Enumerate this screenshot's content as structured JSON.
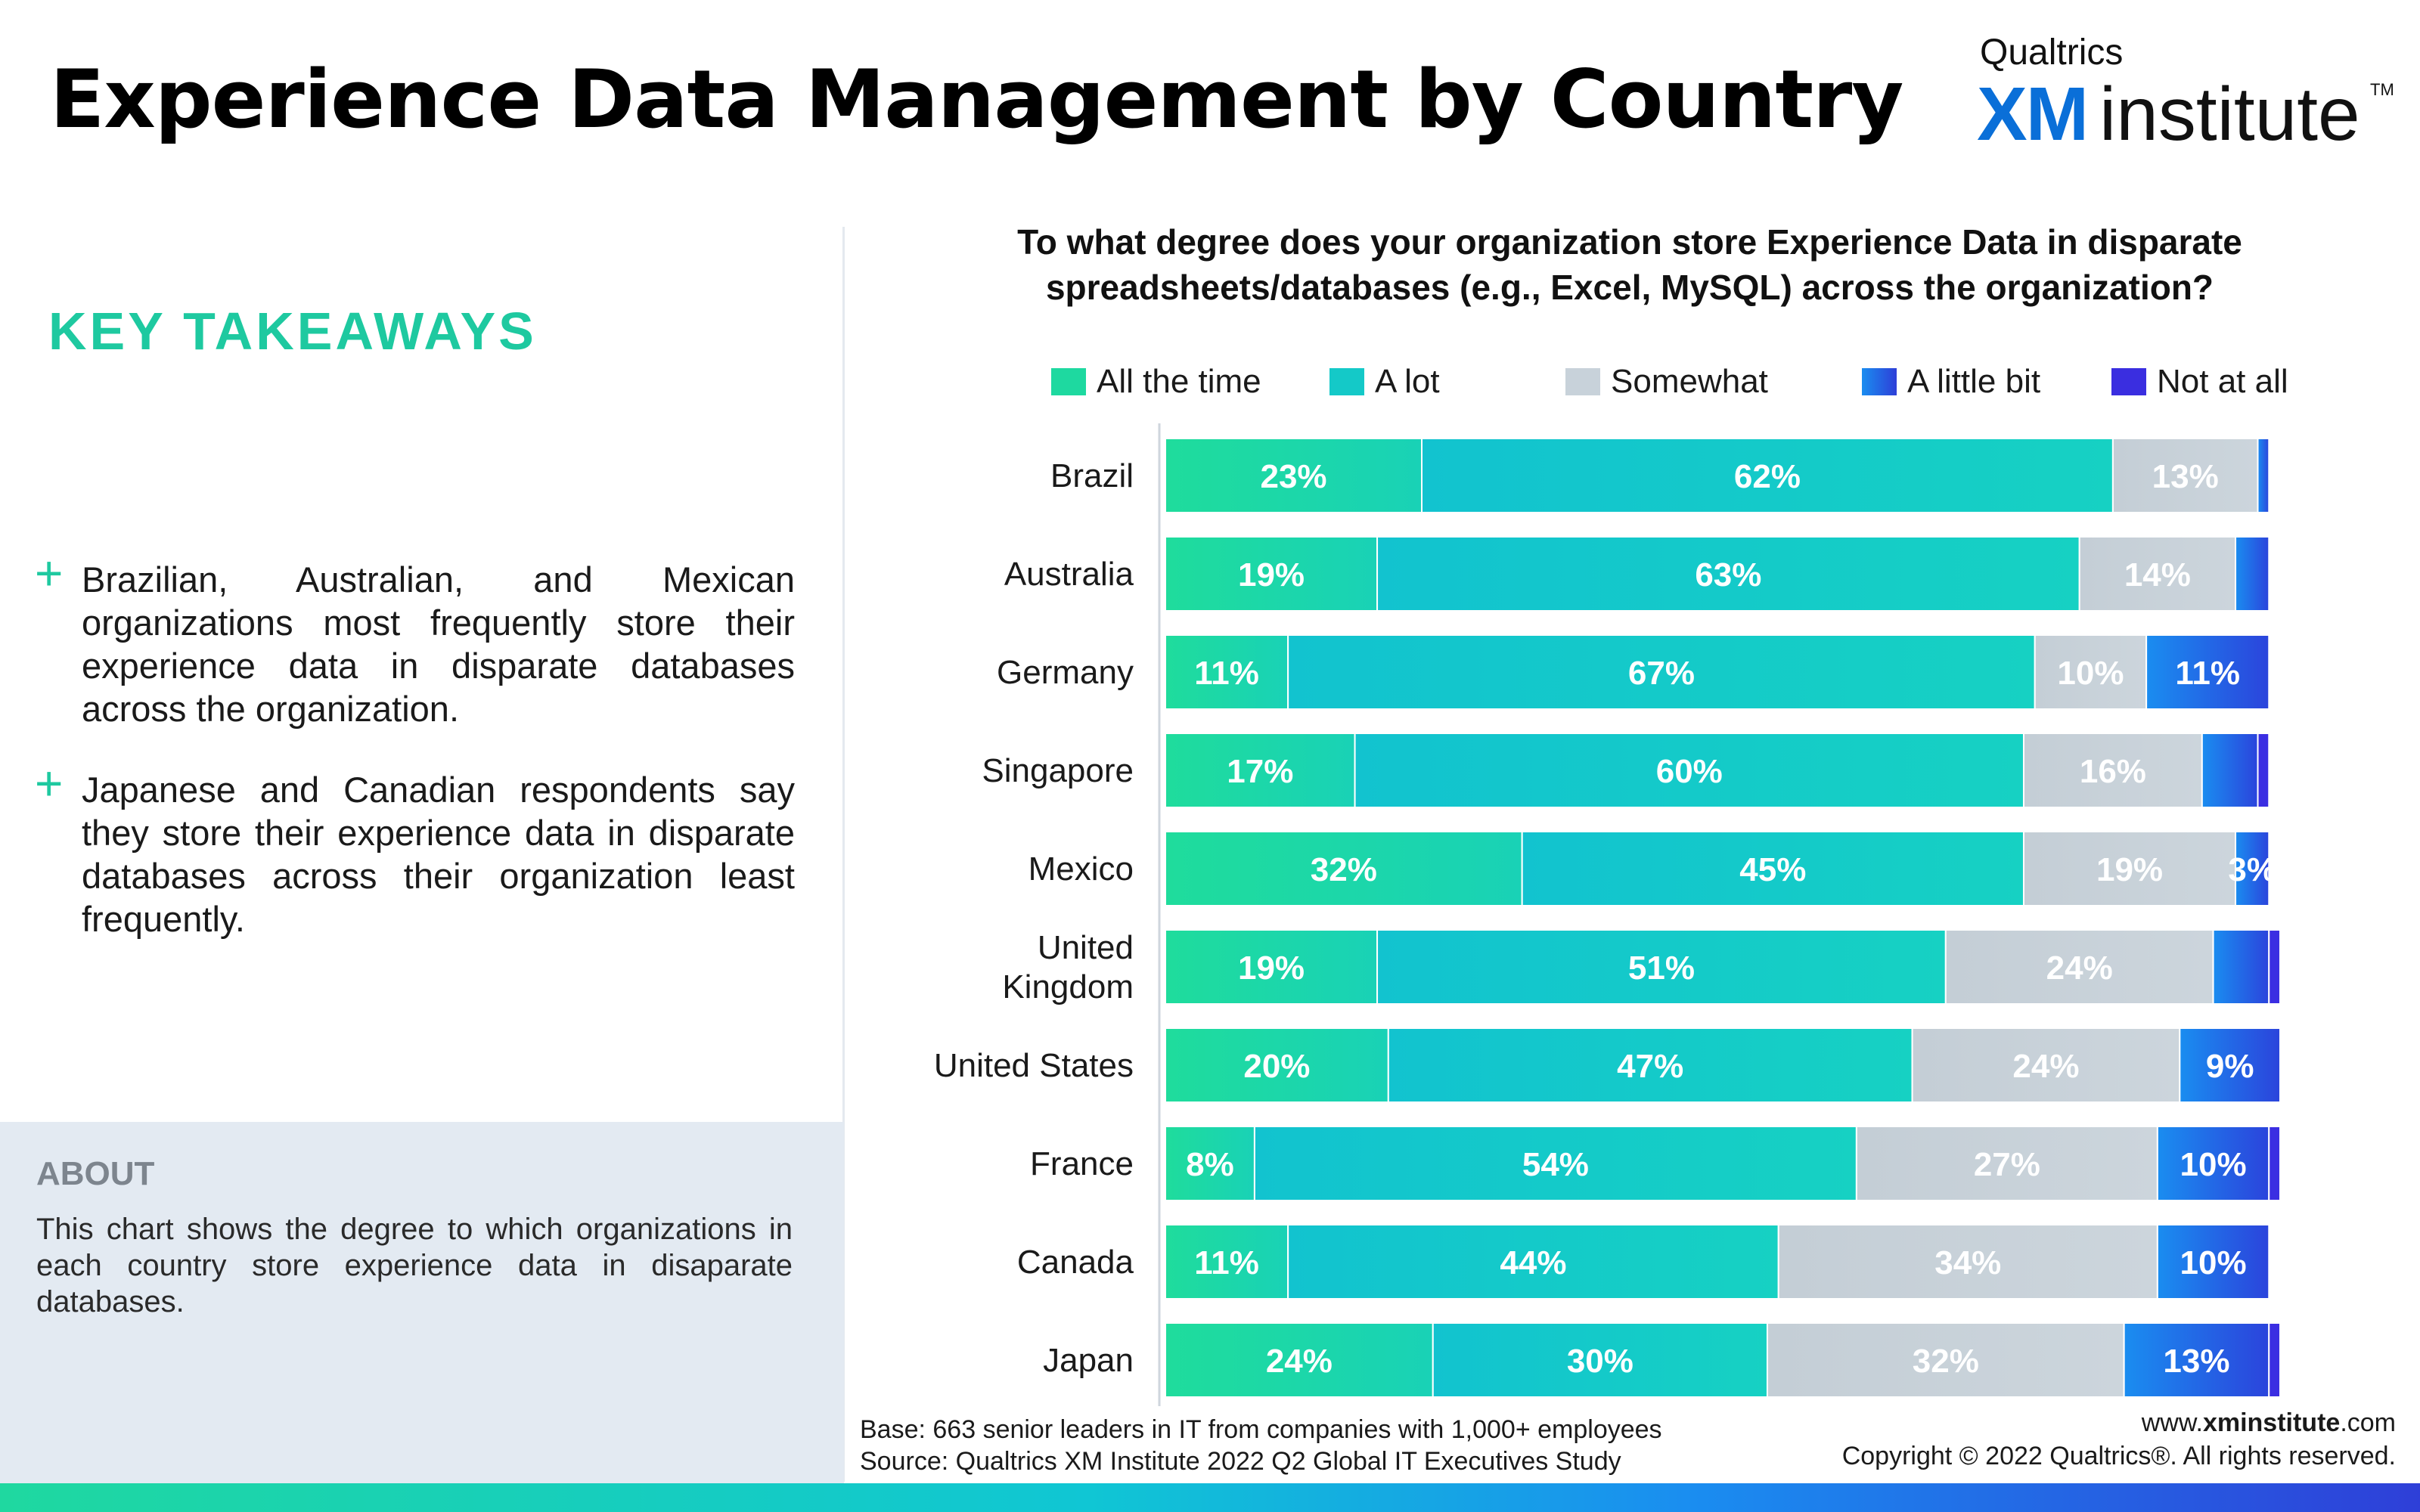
{
  "header": {
    "title": "Experience Data Management by Country",
    "brand_small": "Qualtrics",
    "brand_xm": "XM",
    "brand_institute": "institute",
    "brand_tm": "TM"
  },
  "takeaways": {
    "title": "KEY TAKEAWAYS",
    "bullet_symbol": "+",
    "items": [
      "Brazilian, Australian, and Mexican organizations most frequently store their experience data in disparate databases across the organization.",
      "Japanese and Canadian respondents say they store their experience data in disparate databases across their organization least frequently."
    ]
  },
  "about": {
    "title": "ABOUT",
    "text": "This chart shows the degree to which organizations in each country store experience data in disaparate databases."
  },
  "chart_data": {
    "type": "bar",
    "orientation": "horizontal",
    "stacked": true,
    "title": "To what degree does your organization store Experience Data in disparate spreadsheets/databases (e.g., Excel, MySQL) across the organization?",
    "categories": [
      "Brazil",
      "Australia",
      "Germany",
      "Singapore",
      "Mexico",
      "United Kingdom",
      "United States",
      "France",
      "Canada",
      "Japan"
    ],
    "category_lines": [
      [
        "Brazil"
      ],
      [
        "Australia"
      ],
      [
        "Germany"
      ],
      [
        "Singapore"
      ],
      [
        "Mexico"
      ],
      [
        "United",
        "Kingdom"
      ],
      [
        "United States"
      ],
      [
        "France"
      ],
      [
        "Canada"
      ],
      [
        "Japan"
      ]
    ],
    "unit": "%",
    "xlim": [
      0,
      100
    ],
    "grid": false,
    "legend_position": "top",
    "series": [
      {
        "name": "All the time",
        "color": "#1ed9a0",
        "values": [
          23,
          19,
          11,
          17,
          32,
          19,
          20,
          8,
          11,
          24
        ],
        "labels": [
          "23%",
          "19%",
          "11%",
          "17%",
          "32%",
          "19%",
          "20%",
          "8%",
          "11%",
          "24%"
        ]
      },
      {
        "name": "A lot",
        "color": "#14c9c8",
        "values": [
          62,
          63,
          67,
          60,
          45,
          51,
          47,
          54,
          44,
          30
        ],
        "labels": [
          "62%",
          "63%",
          "67%",
          "60%",
          "45%",
          "51%",
          "47%",
          "54%",
          "44%",
          "30%"
        ]
      },
      {
        "name": "Somewhat",
        "color": "#c8d2da",
        "values": [
          13,
          14,
          10,
          16,
          19,
          24,
          24,
          27,
          34,
          32
        ],
        "labels": [
          "13%",
          "14%",
          "10%",
          "16%",
          "19%",
          "24%",
          "24%",
          "27%",
          "34%",
          "32%"
        ]
      },
      {
        "name": "A little bit",
        "color": "#1a6fe0",
        "values": [
          1,
          3,
          11,
          5,
          3,
          5,
          9,
          10,
          10,
          13
        ],
        "labels": [
          "",
          "",
          "11%",
          "",
          "3%",
          "",
          "9%",
          "10%",
          "10%",
          "13%"
        ]
      },
      {
        "name": "Not at all",
        "color": "#3a2ee0",
        "values": [
          0,
          0,
          0,
          1,
          0,
          1,
          0,
          1,
          0,
          1
        ],
        "labels": [
          "",
          "",
          "",
          "",
          "",
          "",
          "",
          "",
          "",
          ""
        ]
      }
    ]
  },
  "footer": {
    "base": "Base: 663 senior leaders in IT from companies with 1,000+ employees",
    "source": "Source: Qualtrics XM Institute 2022 Q2 Global IT Executives Study",
    "url_prefix": "www.",
    "url_bold": "xminstitute",
    "url_suffix": ".com",
    "copyright": "Copyright © 2022 Qualtrics®. All rights reserved."
  }
}
